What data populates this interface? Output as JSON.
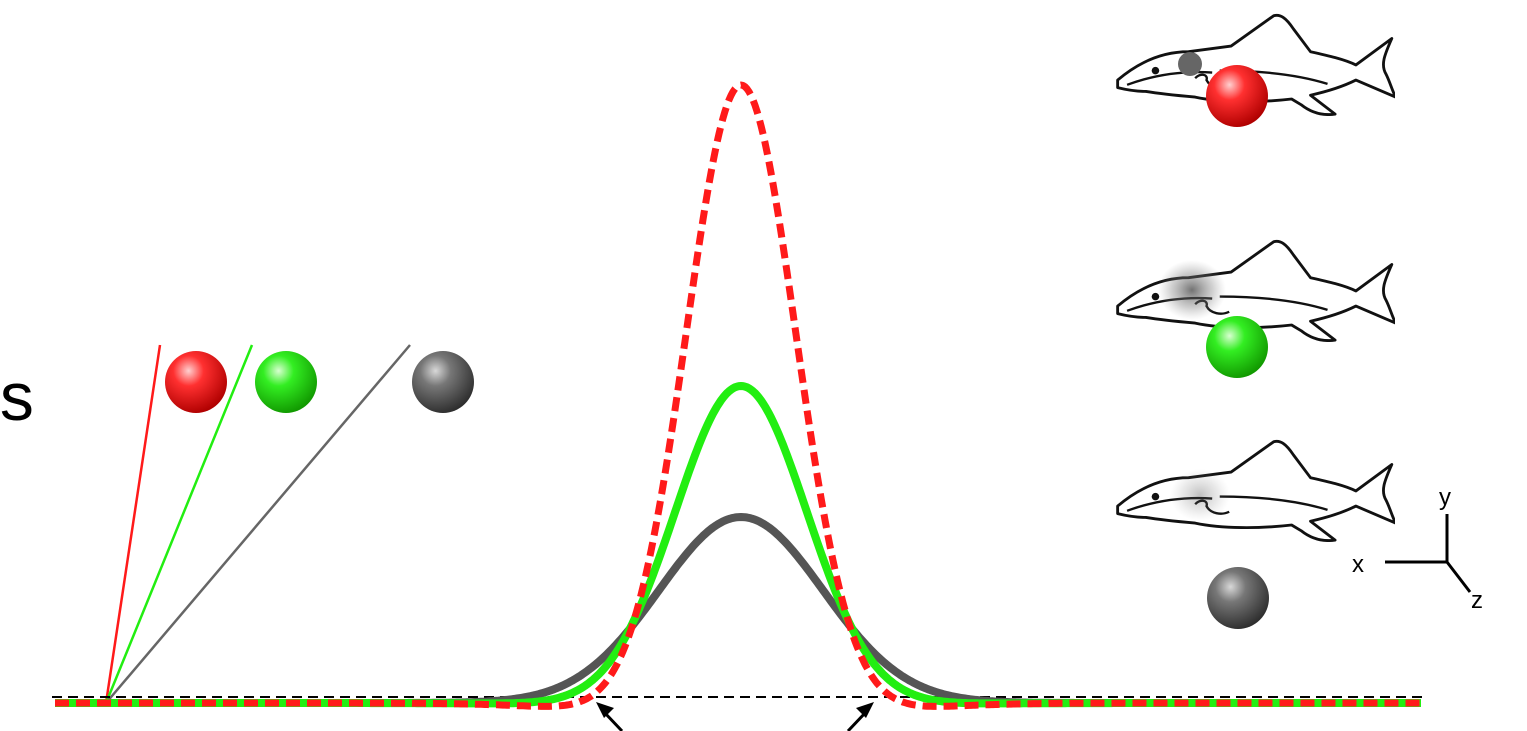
{
  "texts": {
    "cut_text": "ds",
    "axis_x": "x",
    "axis_y": "y",
    "axis_z": "z"
  },
  "colors": {
    "red": "#ff1a1a",
    "green": "#22ee11",
    "gray": "#555555",
    "baseline": "#000000",
    "outline": "#111111"
  }
}
